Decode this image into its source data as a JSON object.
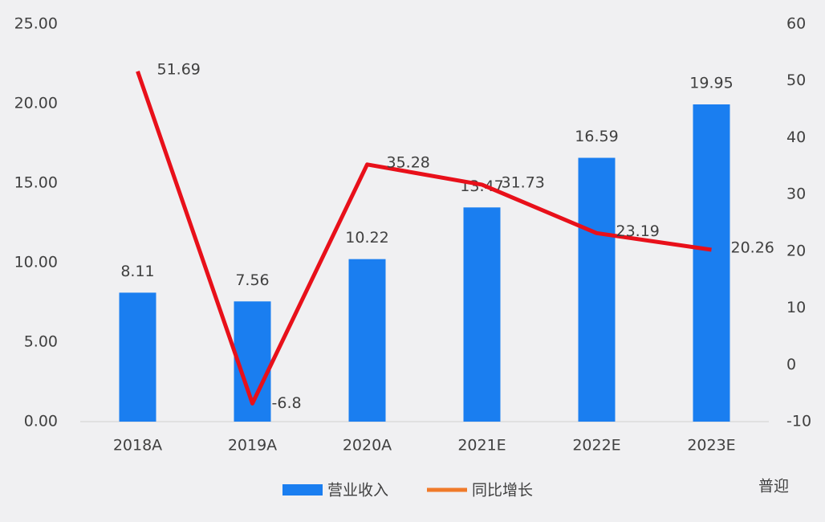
{
  "chart_data": {
    "type": "bar",
    "categories": [
      "2018A",
      "2019A",
      "2020A",
      "2021E",
      "2022E",
      "2023E"
    ],
    "series": [
      {
        "name": "营业收入",
        "color": "#1a7ef0",
        "type": "bar",
        "values": [
          8.11,
          7.56,
          10.22,
          13.47,
          16.59,
          19.95
        ]
      },
      {
        "name": "同比增长",
        "color": "#e8101a",
        "legend_color": "#f07a2a",
        "type": "line",
        "axis": "y2",
        "values": [
          51.69,
          -6.8,
          35.28,
          31.73,
          23.19,
          20.26
        ]
      }
    ],
    "ylim": [
      0,
      25
    ],
    "yticks": [
      {
        "value": 0,
        "label": "0.00"
      },
      {
        "value": 5,
        "label": "5.00"
      },
      {
        "value": 10,
        "label": "10.00"
      },
      {
        "value": 15,
        "label": "15.00"
      },
      {
        "value": 20,
        "label": "20.00"
      },
      {
        "value": 25,
        "label": "25.00"
      }
    ],
    "y2lim": [
      -10,
      60
    ],
    "y2ticks": [
      -10,
      0,
      10,
      20,
      30,
      40,
      50,
      60
    ],
    "grid": false,
    "legend": "bottom",
    "watermark": "普迎"
  }
}
